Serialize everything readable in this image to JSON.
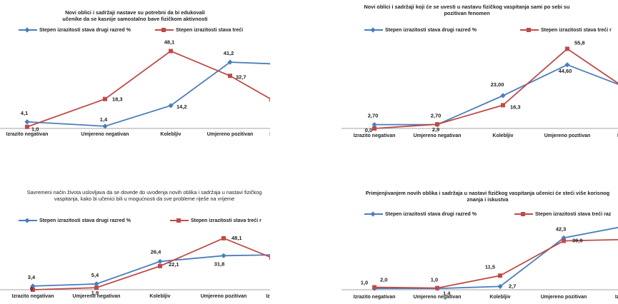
{
  "colors": {
    "blue": "#4a7ebb",
    "red": "#be4b48",
    "axis": "#868686"
  },
  "chart_data": [
    {
      "type": "line",
      "title": "Novi oblici i sadržaji nastave su potrebni da bi edukovali učenike da se kasnije samostalno bave fizičkom aktivnosti",
      "categories": [
        "Izrazito negativan",
        "Umjereno negativan",
        "Kolebljiv",
        "Umjereno pozitivan",
        "Iz"
      ],
      "series": [
        {
          "name": "Stepen izrazitosti stava drugi razred %",
          "values": [
            4.1,
            1.4,
            14.2,
            41.2,
            40.2
          ],
          "labels": [
            "4,1",
            "1,4",
            "14,2",
            "41,2",
            ""
          ]
        },
        {
          "name": "Stepen izrazitosti stava treći",
          "values": [
            1.0,
            18.3,
            48.1,
            32.7,
            18.0
          ],
          "labels": [
            "1,0",
            "18,3",
            "48,1",
            "32,7",
            ""
          ]
        }
      ],
      "ylim": [
        0,
        55
      ]
    },
    {
      "type": "line",
      "title": "Novi oblici i sadržaji koji će se uvesti u nastavu fizičkog vaspitanja sami po sebi su pozitivan fenomen",
      "categories": [
        "Izrazito negativan",
        "Umjereno negativan",
        "Kolebljiv",
        "Umjereno pozitivan",
        "Izra"
      ],
      "series": [
        {
          "name": "Stepen izrazitosti stava drugi razred %",
          "values": [
            2.7,
            2.7,
            23.0,
            44.6,
            30.0
          ],
          "labels": [
            "2,70",
            "2,70",
            "23,00",
            "44,60",
            ""
          ]
        },
        {
          "name": "Stepen izrazitosti stava treći r",
          "values": [
            0.0,
            2.9,
            16.3,
            55.8,
            30.0
          ],
          "labels": [
            "0,0",
            "2,9",
            "16,3",
            "55,8",
            ""
          ]
        }
      ],
      "ylim": [
        0,
        62
      ]
    },
    {
      "type": "line",
      "title": "Savremeni način života uslovljava da se dovede do uvođenja novih oblika i sadržaja u nastavi fizičkog vaspitanja, kako bi učenici bili u mogućnosti da sve probleme riješe na vrijeme",
      "categories": [
        "Izrazito negativan",
        "Umjereno negativan",
        "Kolebljiv",
        "Umjereno pozitivan",
        "Izraz"
      ],
      "series": [
        {
          "name": "Stepen izrazitosti stava drugi razred %",
          "values": [
            3.4,
            5.4,
            26.4,
            31.8,
            32.5
          ],
          "labels": [
            "3,4",
            "5,4",
            "26,4",
            "31,8",
            ""
          ]
        },
        {
          "name": "Stepen izrazitosti stava treći r",
          "values": [
            0,
            1.9,
            22.1,
            48.1,
            30.0
          ],
          "labels": [
            "0",
            "1,9",
            "22,1",
            "48,1",
            ""
          ]
        }
      ],
      "ylim": [
        0,
        52
      ]
    },
    {
      "type": "line",
      "title": "Primjenjivanjem novih oblika i sadržaja u nastavi fizičkog vaspitanja učenici će steći više korisnog znanja i iskustva",
      "categories": [
        "Izrazito negativan",
        "Umjereno negativan",
        "Kolebljiv",
        "Umjereno pozitivan",
        "Izrazito p"
      ],
      "series": [
        {
          "name": "Stepen izrazitosti stava drugi razred %",
          "values": [
            1.0,
            1.0,
            2.7,
            42.3,
            52.0
          ],
          "labels": [
            "1,0",
            "1,0",
            "2,7",
            "42,3",
            ""
          ]
        },
        {
          "name": "Stepen izrazitosti stava treći raz",
          "values": [
            2.0,
            1.4,
            11.5,
            39.9,
            41.0
          ],
          "labels": [
            "2,0",
            "1,4",
            "11,5",
            "39,9",
            ""
          ]
        }
      ],
      "ylim": [
        0,
        60
      ]
    }
  ]
}
